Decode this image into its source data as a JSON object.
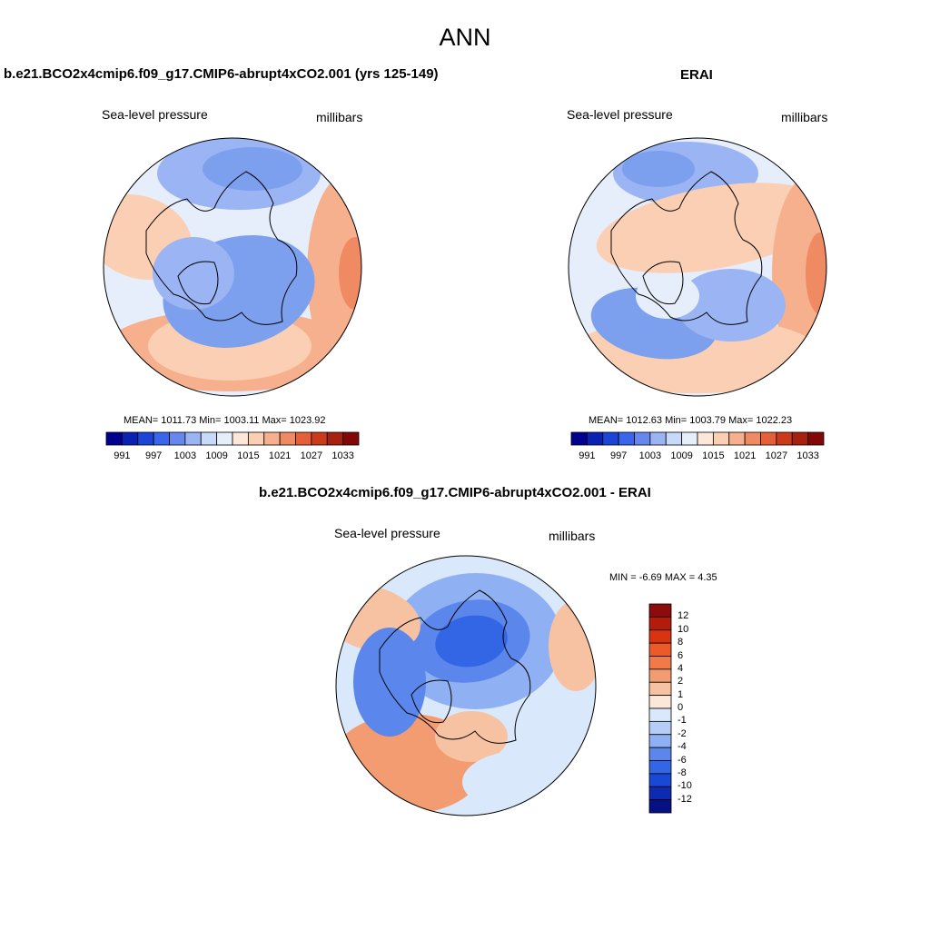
{
  "main_title": "ANN",
  "panels": [
    {
      "title": "b.e21.BCO2x4cmip6.f09_g17.CMIP6-abrupt4xCO2.001 (yrs 125-149)",
      "left_label": "Sea-level pressure",
      "right_label": "millibars",
      "stats": "MEAN= 1011.73  Min= 1003.11  Max= 1023.92"
    },
    {
      "title": "ERAI",
      "left_label": "Sea-level pressure",
      "right_label": "millibars",
      "stats": "MEAN= 1012.63  Min= 1003.79  Max= 1022.23"
    },
    {
      "title": "b.e21.BCO2x4cmip6.f09_g17.CMIP6-abrupt4xCO2.001 - ERAI",
      "left_label": "Sea-level pressure",
      "right_label": "millibars",
      "stats": "MIN =  -6.69 MAX =   4.35"
    }
  ],
  "colorbar_horizontal": {
    "tick_labels": [
      "991",
      "997",
      "1003",
      "1009",
      "1015",
      "1021",
      "1027",
      "1033"
    ],
    "colors": [
      "#00008c",
      "#0a22b4",
      "#1c45d8",
      "#3a66ec",
      "#6688ee",
      "#9ab4f4",
      "#c8dafa",
      "#e6eefc",
      "#fde8d8",
      "#fbcfb3",
      "#f7b08e",
      "#f08a63",
      "#e45f3a",
      "#cc3a1c",
      "#a8200e",
      "#820808"
    ]
  },
  "colorbar_vertical": {
    "tick_labels": [
      "12",
      "10",
      "8",
      "6",
      "4",
      "2",
      "1",
      "0",
      "-1",
      "-2",
      "-4",
      "-6",
      "-8",
      "-10",
      "-12"
    ],
    "colors": [
      "#8c0b0b",
      "#b31c0a",
      "#d83412",
      "#ec5a2a",
      "#f07a48",
      "#f39c72",
      "#f7c2a2",
      "#fce8d8",
      "#dae8fb",
      "#b6cef7",
      "#8fb1f3",
      "#5b86ec",
      "#3366e4",
      "#1a48d6",
      "#0d2ab0",
      "#060f84"
    ]
  },
  "map_fields": {
    "panel1": [
      "#e6eefc",
      "#7ca0ee",
      "#f7b08e",
      "#fbcfb3",
      "#9ab4f4",
      "#f08a63"
    ],
    "panel2": [
      "#e6eefc",
      "#7ca0ee",
      "#fbcfb3",
      "#f7b08e",
      "#9ab4f4",
      "#f08a63"
    ],
    "panel3": [
      "#dae8fb",
      "#3366e4",
      "#8fb1f3",
      "#f39c72",
      "#f7c2a2",
      "#5b86ec"
    ]
  }
}
